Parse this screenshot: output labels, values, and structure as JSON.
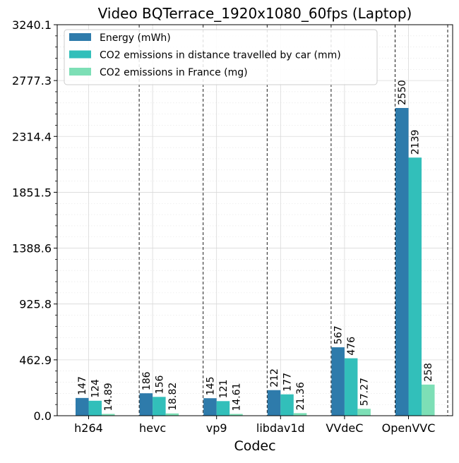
{
  "chart_data": {
    "type": "bar",
    "title": "Video BQTerrace_1920x1080_60fps (Laptop)",
    "xlabel": "Codec",
    "ylabel": "",
    "categories": [
      "h264",
      "hevc",
      "vp9",
      "libdav1d",
      "VVdeC",
      "OpenVVC"
    ],
    "ylim": [
      0,
      3240.1
    ],
    "yticks": [
      0.0,
      462.9,
      925.8,
      1388.6,
      1851.5,
      2314.4,
      2777.3,
      3240.1
    ],
    "ytick_labels": [
      "0.0",
      "462.9",
      "925.8",
      "1388.6",
      "1851.5",
      "2314.4",
      "2777.3",
      "3240.1"
    ],
    "grid": true,
    "legend_position": "top-left",
    "series": [
      {
        "name": "Energy (mWh)",
        "color": "#2e7bab",
        "values": [
          147,
          186,
          145,
          212,
          567,
          2550
        ],
        "labels": [
          "147",
          "186",
          "145",
          "212",
          "567",
          "2550"
        ]
      },
      {
        "name": "CO2 emissions in distance travelled by car (mm)",
        "color": "#32bfba",
        "values": [
          124,
          156,
          121,
          177,
          476,
          2139
        ],
        "labels": [
          "124",
          "156",
          "121",
          "177",
          "476",
          "2139"
        ]
      },
      {
        "name": "CO2 emissions in France (mg)",
        "color": "#7ddfb6",
        "values": [
          14.89,
          18.82,
          14.61,
          21.36,
          57.27,
          258
        ],
        "labels": [
          "14.89",
          "18.82",
          "14.61",
          "21.36",
          "57.27",
          "258"
        ]
      }
    ]
  }
}
